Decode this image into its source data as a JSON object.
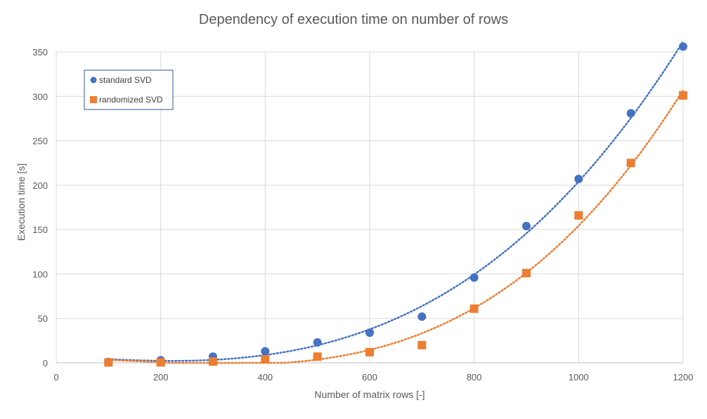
{
  "chart_data": {
    "type": "scatter",
    "title": "Dependency of execution time on number of rows",
    "xlabel": "Number of matrix rows [-]",
    "ylabel": "Execution time [s]",
    "xlim": [
      0,
      1200
    ],
    "ylim": [
      0,
      350
    ],
    "xticks": [
      0,
      200,
      400,
      600,
      800,
      1000,
      1200
    ],
    "yticks": [
      0,
      50,
      100,
      150,
      200,
      250,
      300,
      350
    ],
    "grid": true,
    "legend_position": "top-left",
    "series": [
      {
        "name": "standard SVD",
        "marker": "circle",
        "color": "#4472c4",
        "trendline": "polynomial",
        "x": [
          100,
          200,
          300,
          400,
          500,
          600,
          700,
          800,
          900,
          1000,
          1100,
          1200
        ],
        "y": [
          1,
          3,
          7,
          13,
          23,
          34,
          52,
          96,
          154,
          207,
          281,
          356
        ]
      },
      {
        "name": "randomized SVD",
        "marker": "square",
        "color": "#ed7d31",
        "trendline": "polynomial",
        "x": [
          100,
          200,
          300,
          400,
          500,
          600,
          700,
          800,
          900,
          1000,
          1100,
          1200
        ],
        "y": [
          0.5,
          0.5,
          1.5,
          4,
          7,
          12,
          20,
          61,
          101,
          166,
          225,
          301
        ]
      }
    ]
  }
}
